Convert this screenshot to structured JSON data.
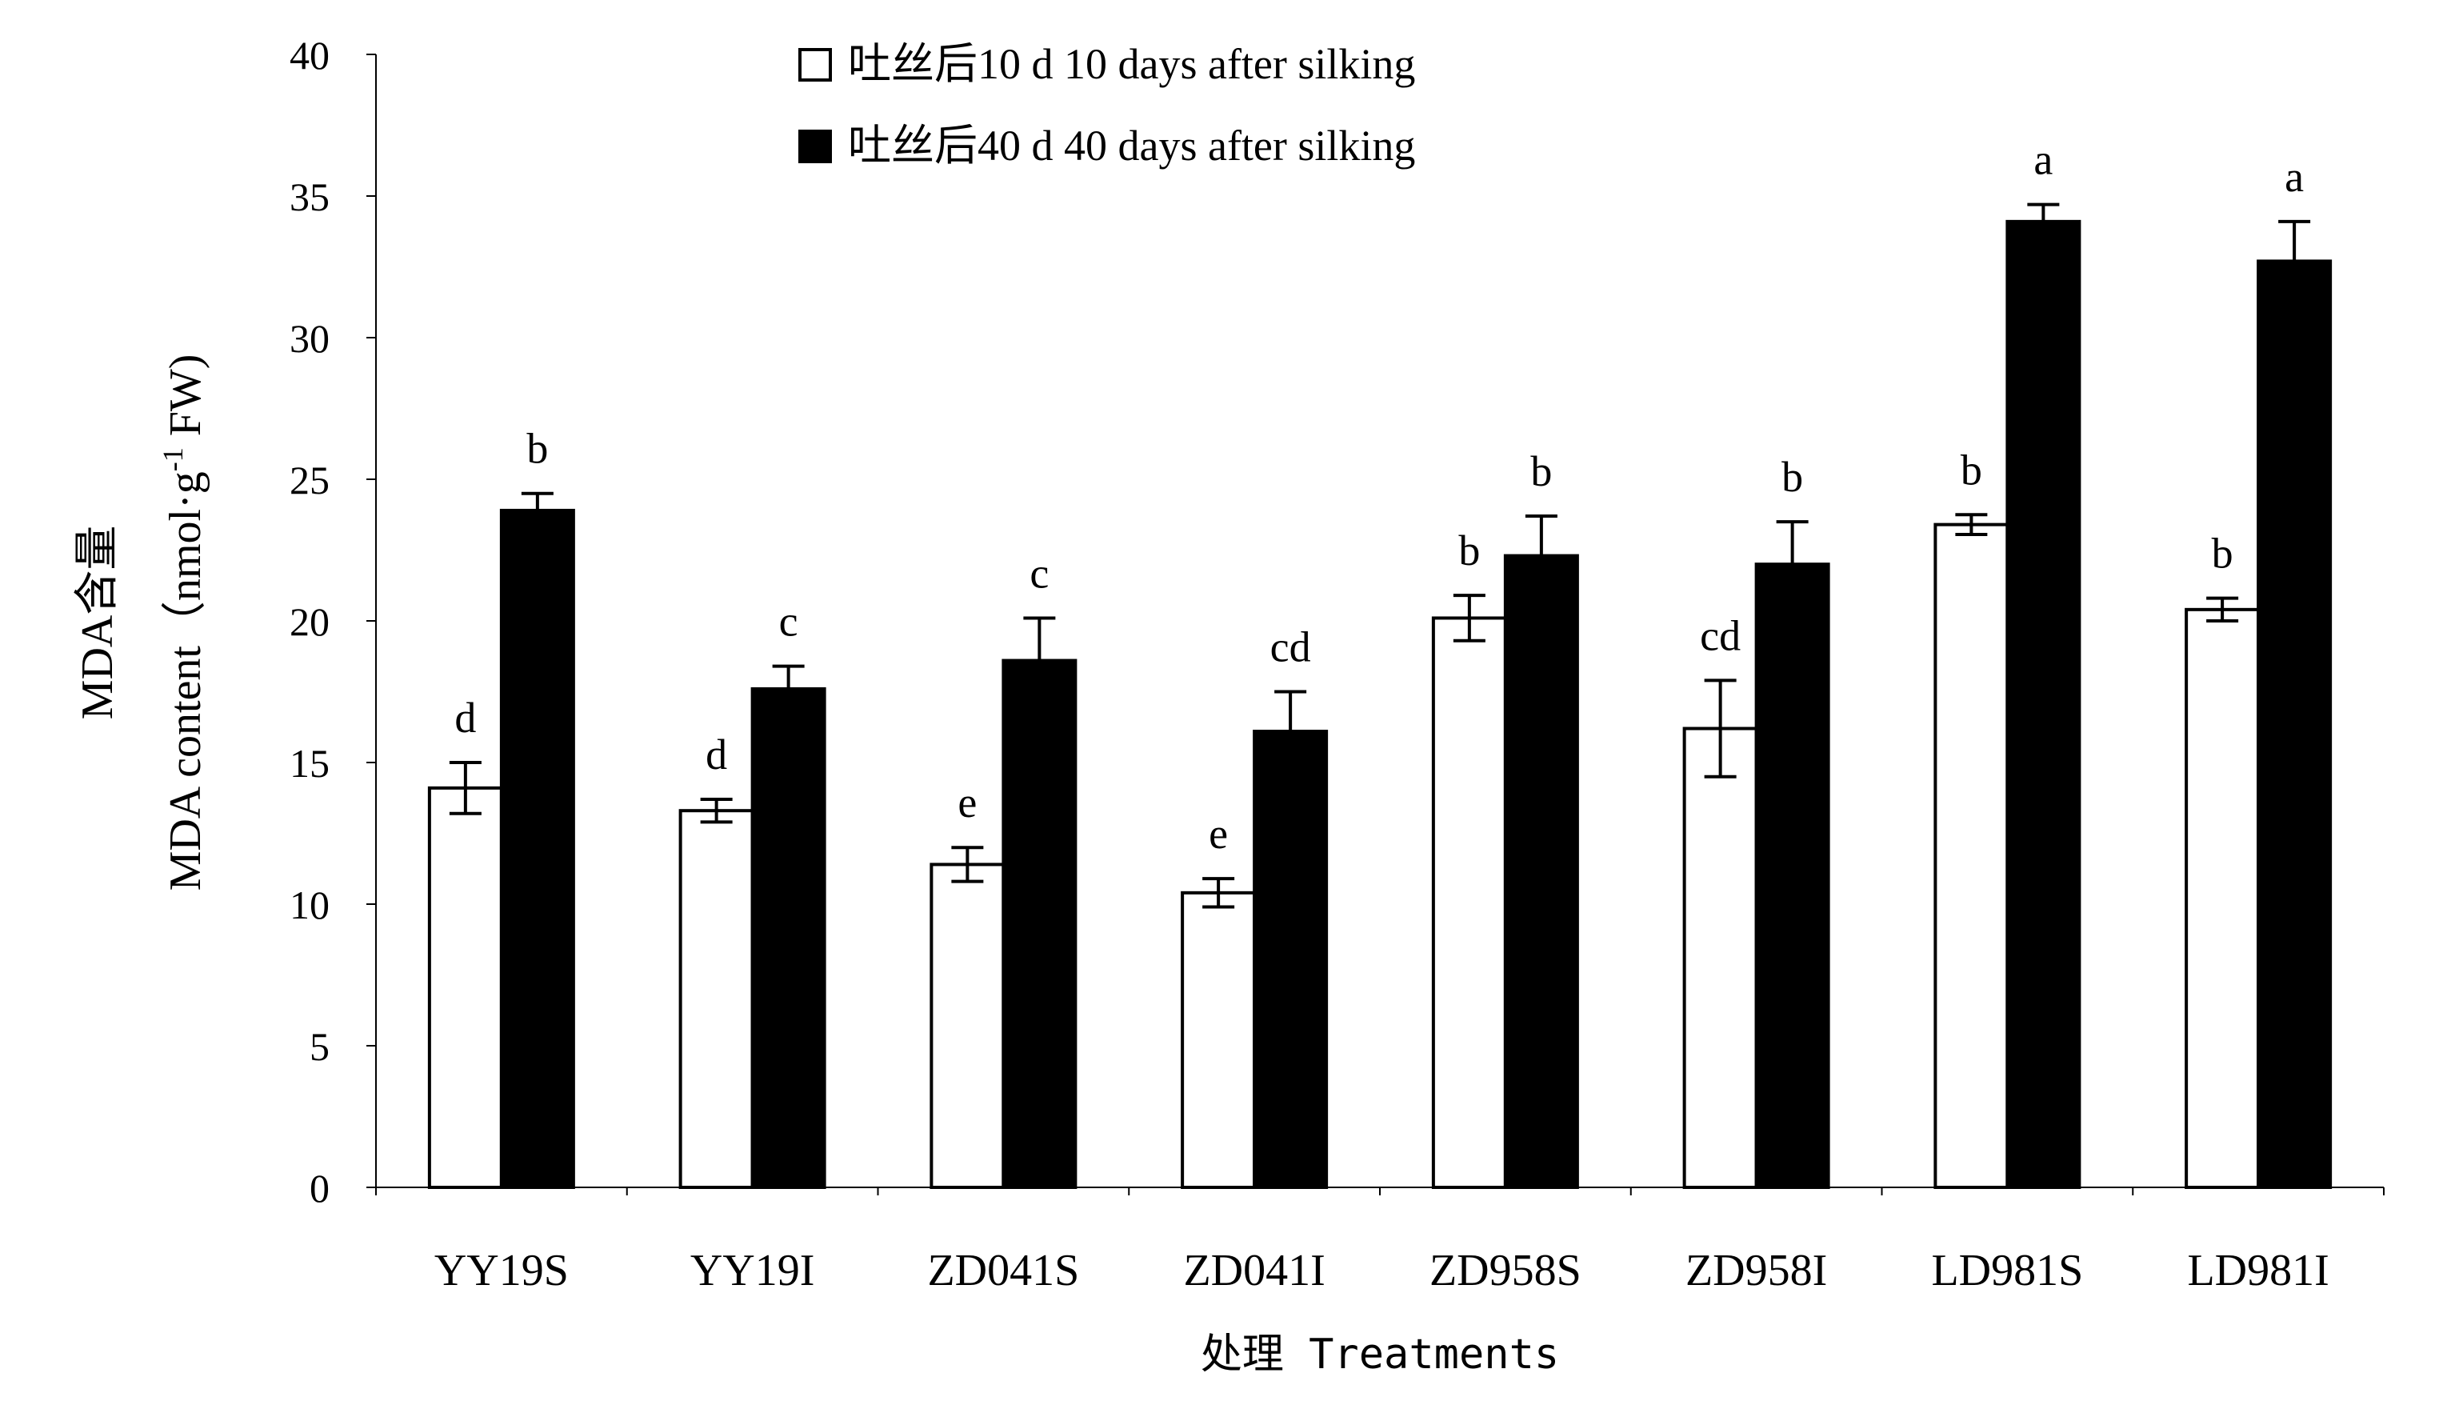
{
  "chart_data": {
    "type": "bar",
    "categories": [
      "YY19S",
      "YY19I",
      "ZD041S",
      "ZD041I",
      "ZD958S",
      "ZD958I",
      "LD981S",
      "LD981I"
    ],
    "series": [
      {
        "name": "吐丝后10 d  10 days after silking",
        "fill": "#ffffff",
        "values": [
          14.1,
          13.3,
          11.4,
          10.4,
          20.1,
          16.2,
          23.4,
          20.4
        ],
        "errors": [
          0.9,
          0.4,
          0.6,
          0.5,
          0.8,
          1.7,
          0.35,
          0.4
        ],
        "letters": [
          "d",
          "d",
          "e",
          "e",
          "b",
          "cd",
          "b",
          "b"
        ]
      },
      {
        "name": "吐丝后40 d  40 days after silking",
        "fill": "#000000",
        "values": [
          23.9,
          17.6,
          18.6,
          16.1,
          22.3,
          22.0,
          34.1,
          32.7
        ],
        "errors": [
          0.6,
          0.8,
          1.5,
          1.4,
          1.4,
          1.5,
          0.6,
          1.4
        ],
        "letters": [
          "b",
          "c",
          "c",
          "cd",
          "b",
          "b",
          "a",
          "a"
        ]
      }
    ],
    "ylabel_cn": "MDA含量",
    "ylabel_en": "MDA content（nmol·g",
    "ylabel_sup": "-1",
    "ylabel_tail": " FW)",
    "xlabel": "处理 Treatments",
    "ylim": [
      0,
      40
    ],
    "yticks": [
      0,
      5,
      10,
      15,
      20,
      25,
      30,
      35,
      40
    ],
    "grid": false,
    "legend_position": "top-center"
  }
}
